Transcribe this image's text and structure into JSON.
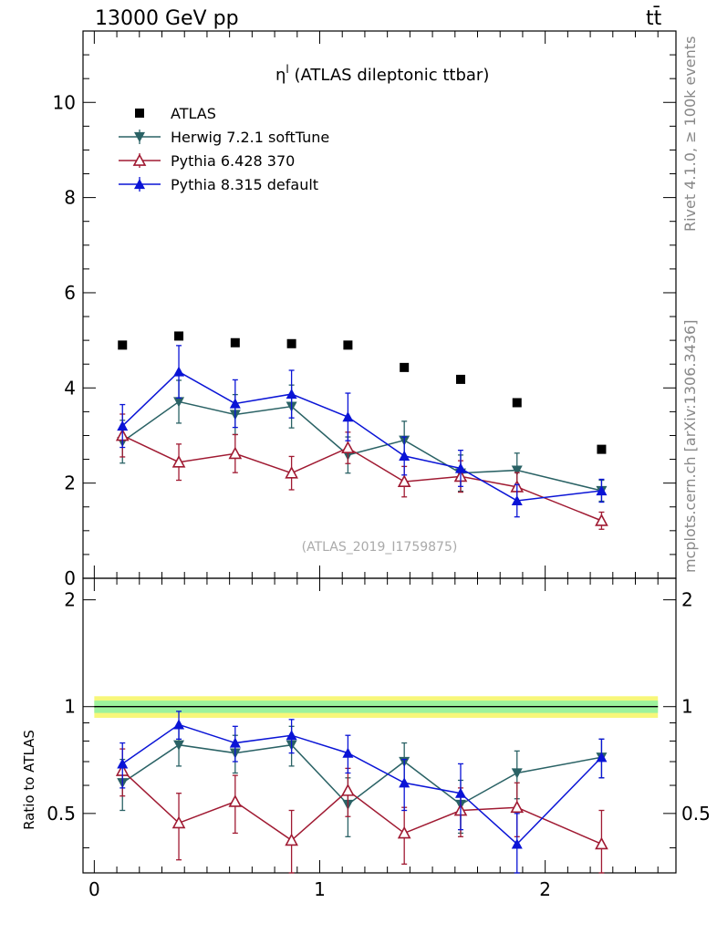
{
  "header": {
    "energy": "13000 GeV pp",
    "process": "tt̄"
  },
  "side_labels": {
    "rivet": "Rivet 4.1.0, ≥ 100k events",
    "site": "mcplots.cern.ch [arXiv:1306.3436]"
  },
  "plot_title": {
    "symbol": "η",
    "superscript": "l",
    "text": " (ATLAS dileptonic ttbar)"
  },
  "reference": "(ATLAS_2019_I1759875)",
  "ratio_ylabel": "Ratio to ATLAS",
  "colors": {
    "atlas": "#000000",
    "herwig": "#2a6265",
    "pythia6": "#a01a32",
    "pythia8": "#0a14d6"
  },
  "chart_data": {
    "type": "scatter",
    "x_bins": [
      0.0,
      0.25,
      0.5,
      0.75,
      1.0,
      1.25,
      1.5,
      1.75,
      2.0,
      2.5
    ],
    "x": [
      0.125,
      0.375,
      0.625,
      0.875,
      1.125,
      1.375,
      1.625,
      1.875,
      2.25
    ],
    "xlim": [
      -0.05,
      2.58
    ],
    "xticks": [
      "0",
      "1",
      "2"
    ],
    "main": {
      "ylim": [
        0,
        11.5
      ],
      "yticks": [
        "0",
        "2",
        "4",
        "6",
        "8",
        "10"
      ],
      "series": [
        {
          "name": "ATLAS",
          "marker": "square",
          "values": [
            4.9,
            5.09,
            4.95,
            4.93,
            4.9,
            4.43,
            4.18,
            3.69,
            2.71
          ]
        },
        {
          "name": "Herwig 7.2.1 softTune",
          "marker": "triangle-down",
          "values": [
            2.87,
            3.71,
            3.44,
            3.61,
            2.59,
            2.9,
            2.21,
            2.27,
            1.84
          ],
          "errors": [
            0.45,
            0.45,
            0.42,
            0.45,
            0.38,
            0.4,
            0.38,
            0.36,
            0.22
          ]
        },
        {
          "name": "Pythia 6.428 370",
          "marker": "triangle-up-open",
          "values": [
            3.0,
            2.44,
            2.62,
            2.21,
            2.74,
            2.03,
            2.14,
            1.92,
            1.21
          ],
          "errors": [
            0.45,
            0.38,
            0.4,
            0.35,
            0.33,
            0.32,
            0.33,
            0.3,
            0.18
          ]
        },
        {
          "name": "Pythia 8.315 default",
          "marker": "triangle-up",
          "values": [
            3.2,
            4.34,
            3.67,
            3.87,
            3.39,
            2.57,
            2.31,
            1.63,
            1.84
          ],
          "errors": [
            0.45,
            0.55,
            0.5,
            0.5,
            0.5,
            0.4,
            0.38,
            0.34,
            0.24
          ]
        }
      ]
    },
    "ratio": {
      "ylim": [
        0.34,
        2.3
      ],
      "yticks": [
        "0.5",
        "1",
        "2"
      ],
      "band_inner": 0.04,
      "band_outer": 0.07,
      "series": [
        {
          "name": "Herwig 7.2.1 softTune",
          "values": [
            0.61,
            0.78,
            0.74,
            0.78,
            0.53,
            0.7,
            0.53,
            0.65,
            0.72
          ],
          "errors": [
            0.1,
            0.1,
            0.09,
            0.1,
            0.1,
            0.09,
            0.09,
            0.1,
            0.09
          ]
        },
        {
          "name": "Pythia 6.428 370",
          "values": [
            0.66,
            0.47,
            0.54,
            0.42,
            0.58,
            0.44,
            0.51,
            0.52,
            0.41
          ],
          "errors": [
            0.1,
            0.1,
            0.1,
            0.09,
            0.09,
            0.08,
            0.08,
            0.09,
            0.1
          ]
        },
        {
          "name": "Pythia 8.315 default",
          "values": [
            0.69,
            0.89,
            0.79,
            0.83,
            0.74,
            0.61,
            0.57,
            0.41,
            0.72
          ],
          "errors": [
            0.1,
            0.08,
            0.09,
            0.09,
            0.09,
            0.1,
            0.12,
            0.09,
            0.09
          ]
        }
      ]
    }
  }
}
